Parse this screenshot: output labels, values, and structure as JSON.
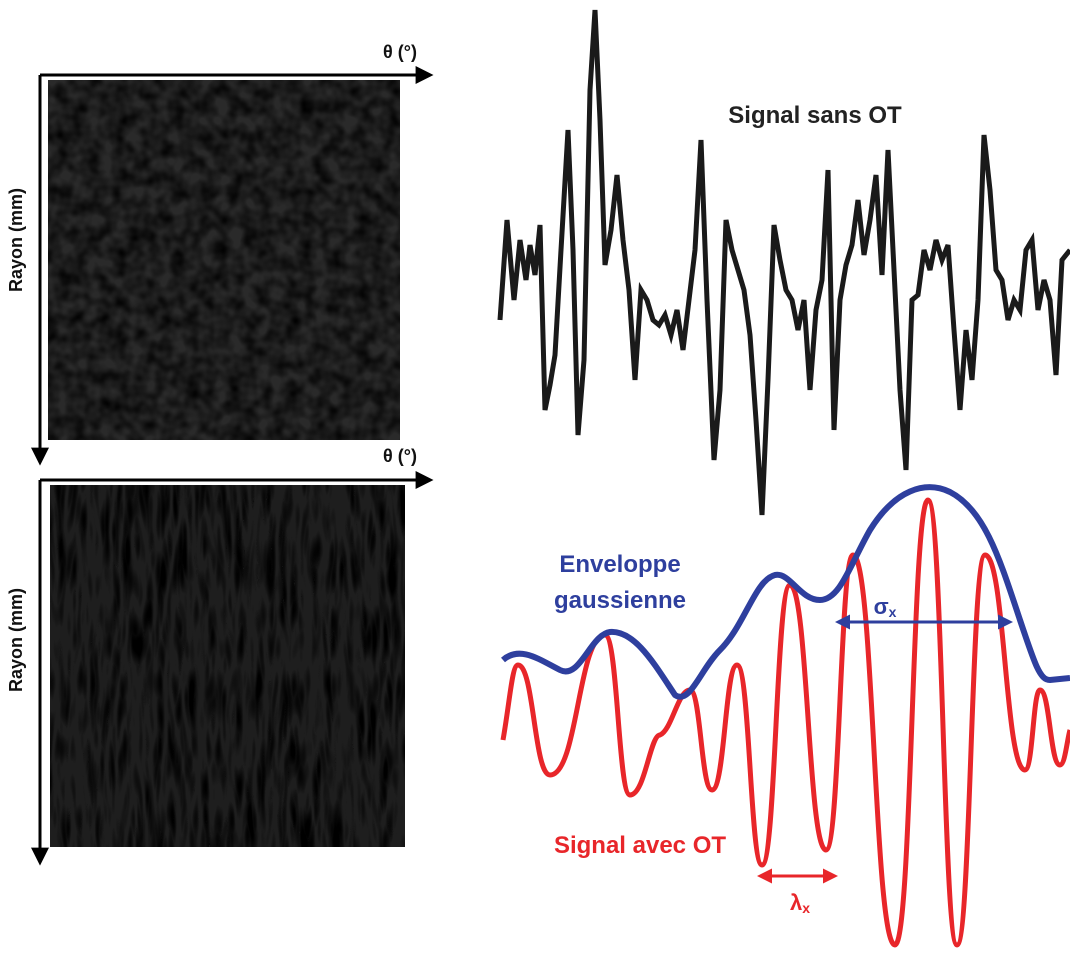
{
  "top_panel": {
    "x_axis_label": "θ (°)",
    "y_axis_label": "Rayon (mm)"
  },
  "bottom_panel": {
    "x_axis_label": "θ (°)",
    "y_axis_label": "Rayon (mm)"
  },
  "signal_without": {
    "label": "Signal sans OT"
  },
  "envelope": {
    "label_lines": [
      "Enveloppe",
      "gaussienne"
    ],
    "width": {
      "symbol": "σ",
      "subscript": "x"
    }
  },
  "signal_with": {
    "label": "Signal avec OT",
    "wavelength": {
      "symbol": "λ",
      "subscript": "x"
    }
  }
}
